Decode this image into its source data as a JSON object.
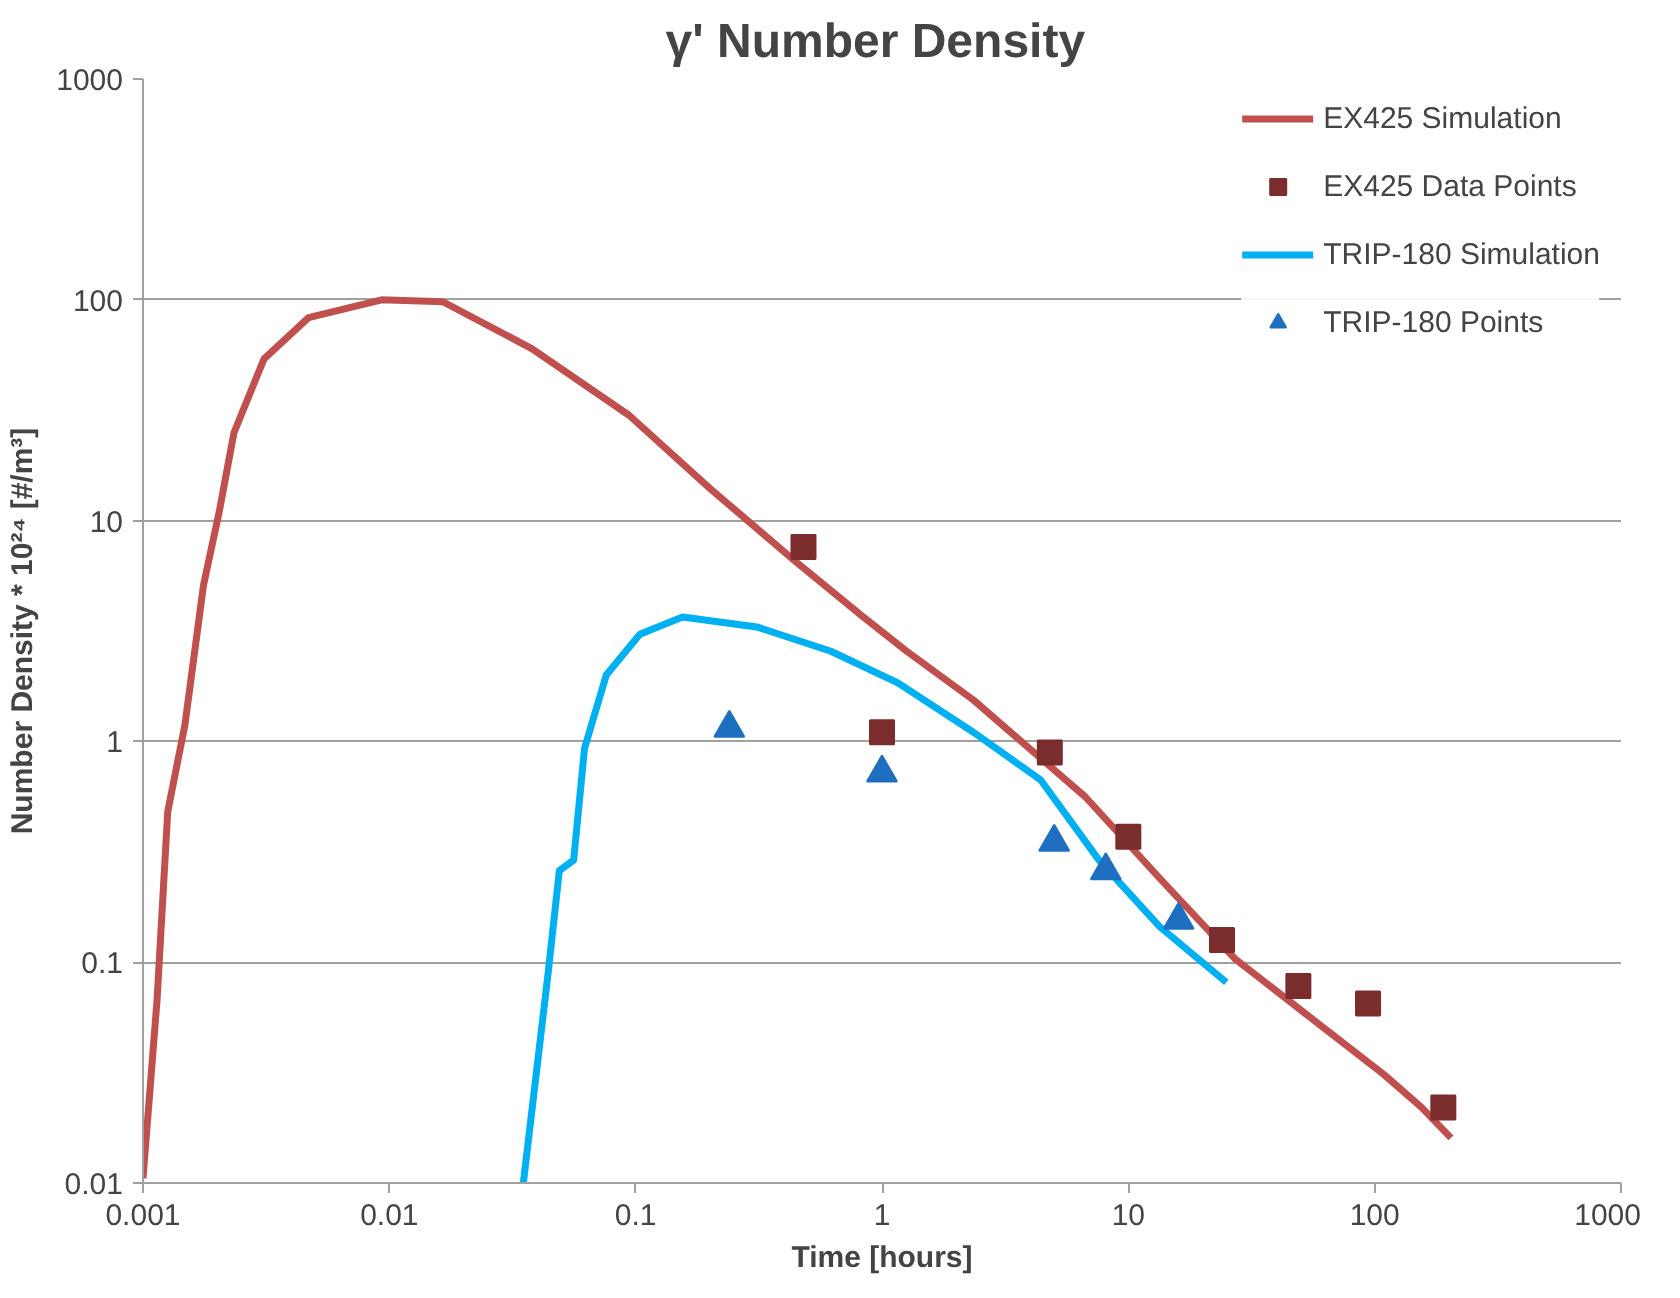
{
  "chart_data": {
    "type": "line",
    "title": "γ'  Number Density",
    "xlabel": "Time [hours]",
    "ylabel": "Number Density * 10²⁴ [#/m³]",
    "log": "xy",
    "grid": "y",
    "legend": "top right",
    "xlim": [
      0.001,
      1000
    ],
    "xticks": [
      0.001,
      0.01,
      0.1,
      1,
      10,
      100,
      1000
    ],
    "ylim": [
      0.01,
      1000
    ],
    "yticks": [
      0.01,
      0.1,
      1,
      10,
      100,
      1000
    ],
    "series": [
      {
        "name": "EX425 Simulation",
        "marker": "none",
        "line_style": "solid",
        "color": "#c0504d",
        "x": [
          0.001,
          0.00114,
          0.00126,
          0.00148,
          0.00176,
          0.00204,
          0.00234,
          0.0031,
          0.0047,
          0.0093,
          0.0165,
          0.038,
          0.094,
          0.2,
          0.44,
          0.83,
          1.26,
          2.35,
          6.7,
          13.4,
          27,
          55,
          109,
          155,
          204
        ],
        "values": [
          0.0105,
          0.067,
          0.48,
          1.19,
          5.1,
          11,
          25,
          54,
          83,
          100,
          98,
          60,
          30,
          14,
          6.6,
          3.7,
          2.56,
          1.54,
          0.56,
          0.24,
          0.104,
          0.056,
          0.031,
          0.022,
          0.016
        ]
      },
      {
        "name": "EX425 Data Points",
        "type": "scatter",
        "marker": "square",
        "color": "#7b2c2c",
        "x": [
          0.48,
          1,
          4.8,
          10,
          24,
          49,
          94,
          190
        ],
        "values": [
          7.6,
          1.1,
          0.89,
          0.37,
          0.126,
          0.078,
          0.065,
          0.022
        ]
      },
      {
        "name": "TRIP-180 Simulation",
        "marker": "none",
        "line_style": "solid",
        "color": "#00b0f0",
        "x": [
          0.035,
          0.044,
          0.049,
          0.056,
          0.062,
          0.076,
          0.104,
          0.155,
          0.31,
          0.62,
          1.16,
          2.35,
          4.4,
          7.6,
          13.4,
          25
        ],
        "values": [
          0.01,
          0.087,
          0.26,
          0.29,
          0.93,
          2.0,
          3.06,
          3.66,
          3.3,
          2.56,
          1.84,
          1.1,
          0.67,
          0.29,
          0.145,
          0.081
        ]
      },
      {
        "name": "TRIP-180 Points",
        "type": "scatter",
        "marker": "triangle",
        "color": "#1f6fc0",
        "x": [
          0.24,
          1,
          5,
          8.1,
          16
        ],
        "values": [
          1.15,
          0.72,
          0.35,
          0.26,
          0.155
        ]
      }
    ]
  }
}
